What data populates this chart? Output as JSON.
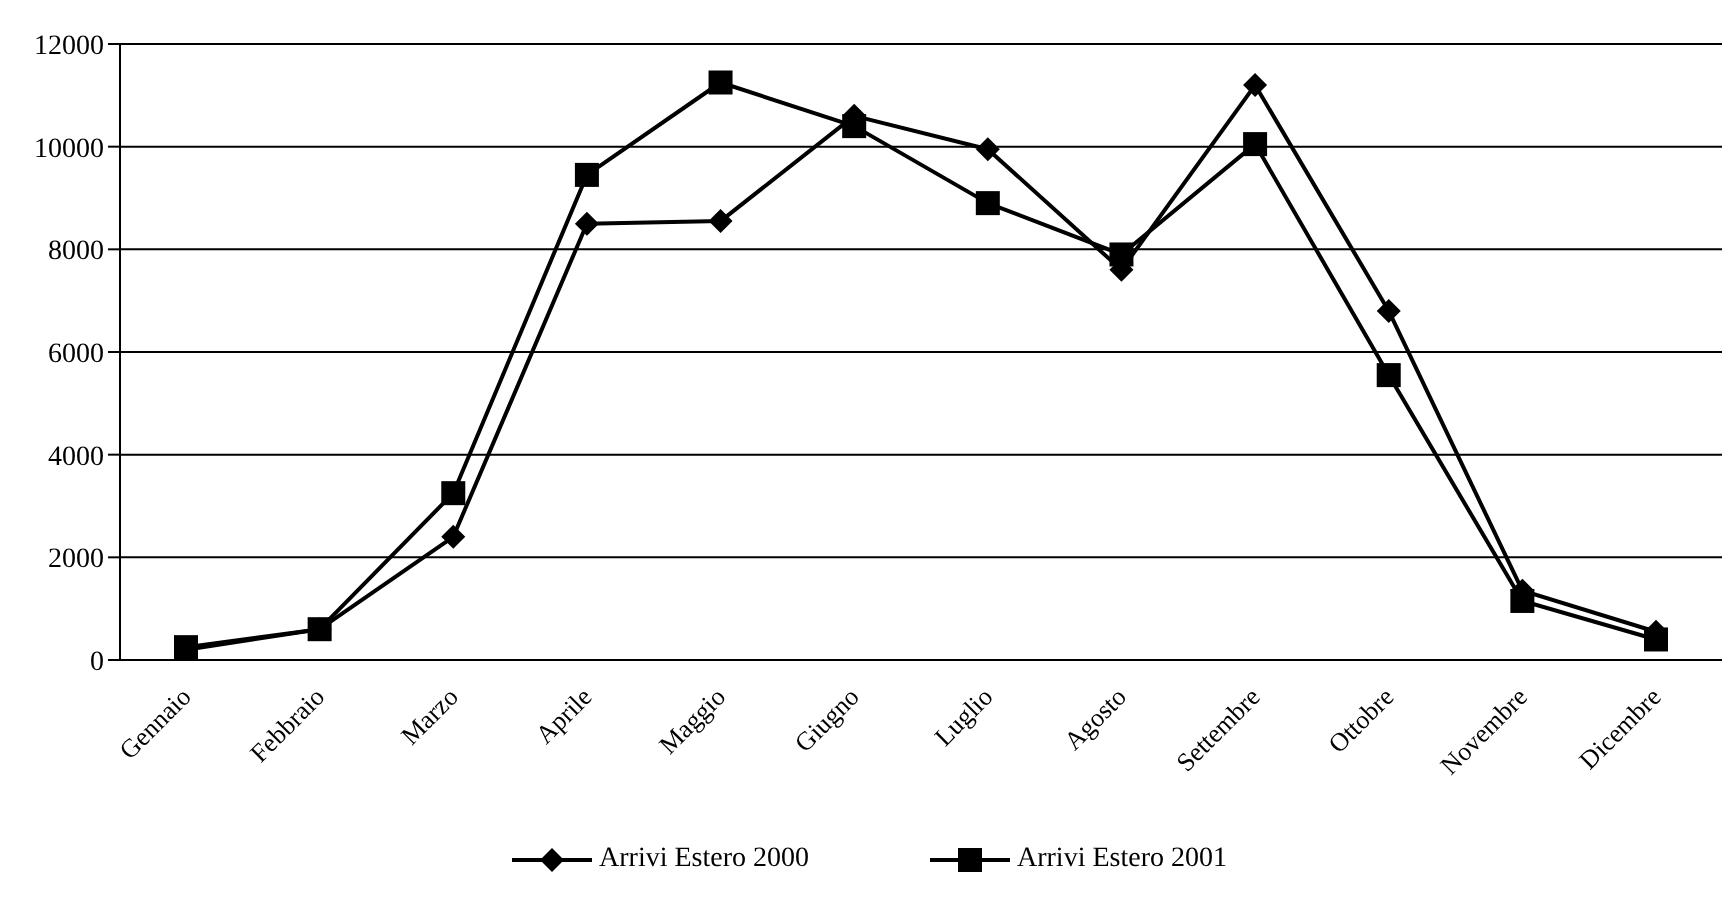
{
  "chart_data": {
    "type": "line",
    "categories": [
      "Gennaio",
      "Febbraio",
      "Marzo",
      "Aprile",
      "Maggio",
      "Giugno",
      "Luglio",
      "Agosto",
      "Settembre",
      "Ottobre",
      "Novembre",
      "Dicembre"
    ],
    "series": [
      {
        "name": "Arrivi Estero 2000",
        "color": "#000000",
        "marker": "diamond",
        "values": [
          200,
          600,
          2400,
          8500,
          8550,
          10600,
          9950,
          7600,
          11200,
          6800,
          1350,
          550
        ]
      },
      {
        "name": "Arrivi Estero 2001",
        "color": "#000000",
        "marker": "square",
        "values": [
          250,
          600,
          3250,
          9450,
          11250,
          10400,
          8900,
          7900,
          10050,
          5550,
          1150,
          400
        ]
      }
    ],
    "ylim": [
      0,
      12000
    ],
    "yticks": [
      0,
      2000,
      4000,
      6000,
      8000,
      10000,
      12000
    ],
    "grid": "y",
    "legend": "bottom",
    "line_style": "solid"
  }
}
